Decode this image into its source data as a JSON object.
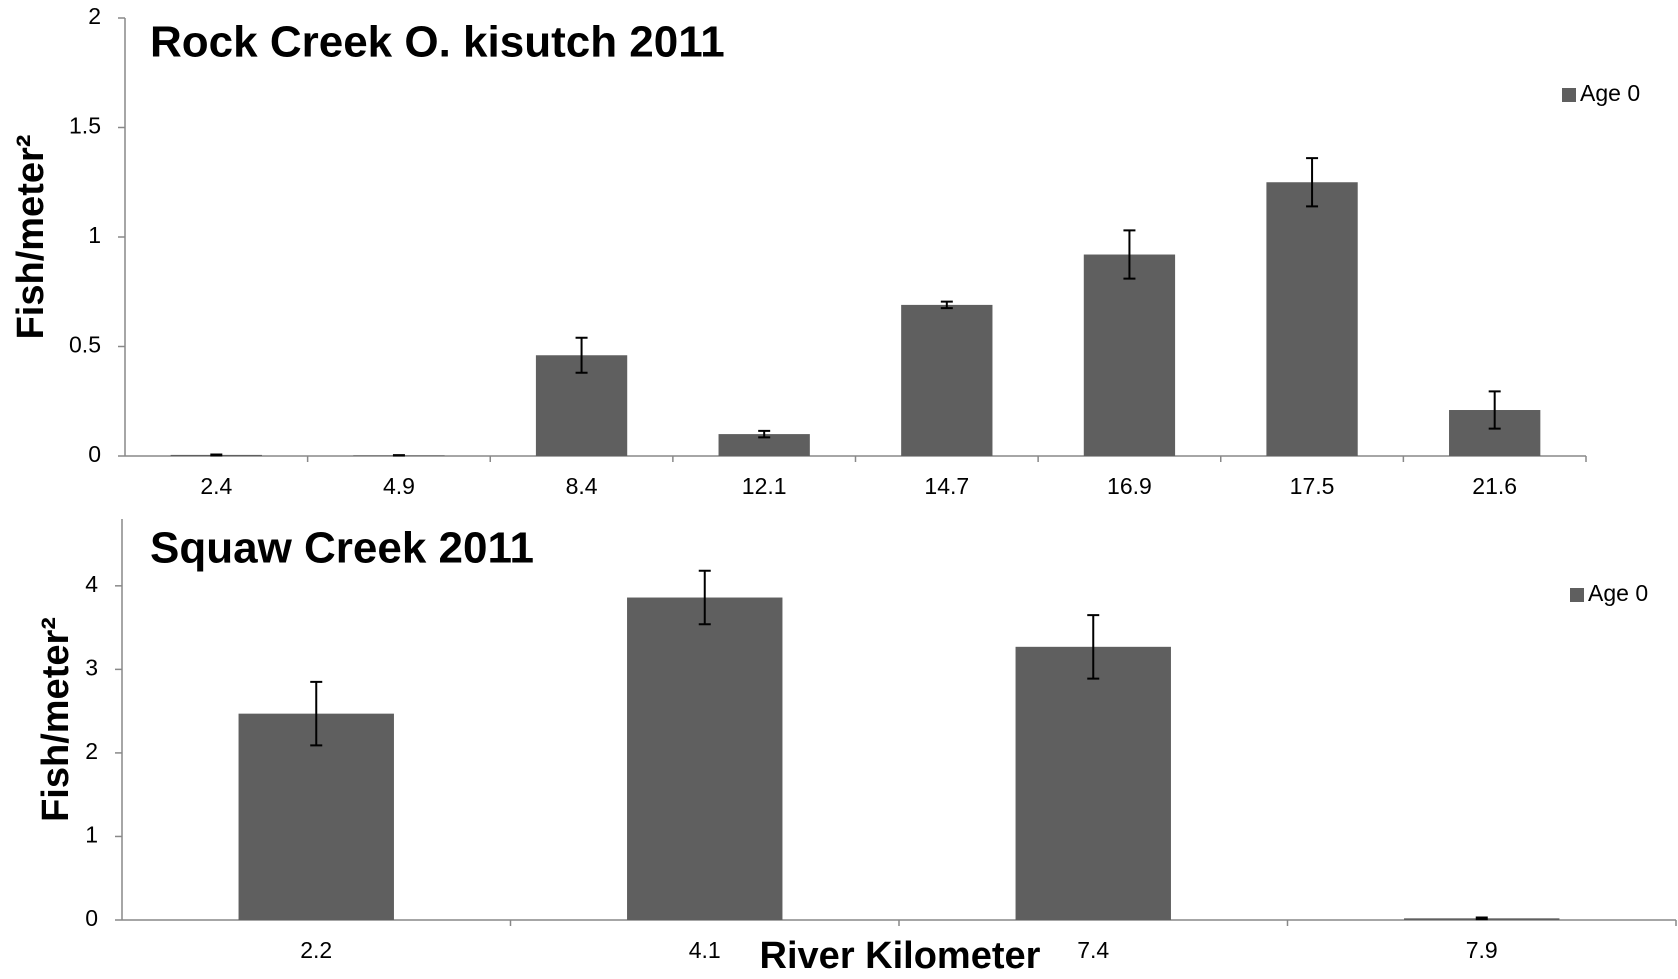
{
  "chart_data": [
    {
      "type": "bar",
      "title": "Rock Creek O. kisutch 2011",
      "y_label": "Fish/meter²",
      "categories": [
        "2.4",
        "4.9",
        "8.4",
        "12.1",
        "14.7",
        "16.9",
        "17.5",
        "21.6"
      ],
      "series": [
        {
          "name": "Age 0",
          "color": "#5f5f5f",
          "values": [
            0.005,
            0.003,
            0.46,
            0.1,
            0.69,
            0.92,
            1.25,
            0.21
          ],
          "errors": [
            0.002,
            0.001,
            0.08,
            0.015,
            0.015,
            0.11,
            0.11,
            0.085
          ]
        }
      ],
      "ylim": [
        0,
        2
      ],
      "yticks": [
        0,
        0.5,
        1,
        1.5,
        2
      ],
      "legend": "top-right",
      "grid": false
    },
    {
      "type": "bar",
      "title": "Squaw Creek 2011",
      "y_label": "Fish/meter²",
      "x_label": "River Kilometer",
      "categories": [
        "2.2",
        "4.1",
        "7.4",
        "7.9"
      ],
      "series": [
        {
          "name": "Age 0",
          "color": "#5f5f5f",
          "values": [
            2.47,
            3.86,
            3.27,
            0.02
          ],
          "errors": [
            0.38,
            0.32,
            0.38,
            0.01
          ]
        }
      ],
      "ylim": [
        0,
        4.8
      ],
      "yticks": [
        0,
        1,
        2,
        3,
        4
      ],
      "legend": "top-right",
      "grid": false
    }
  ]
}
